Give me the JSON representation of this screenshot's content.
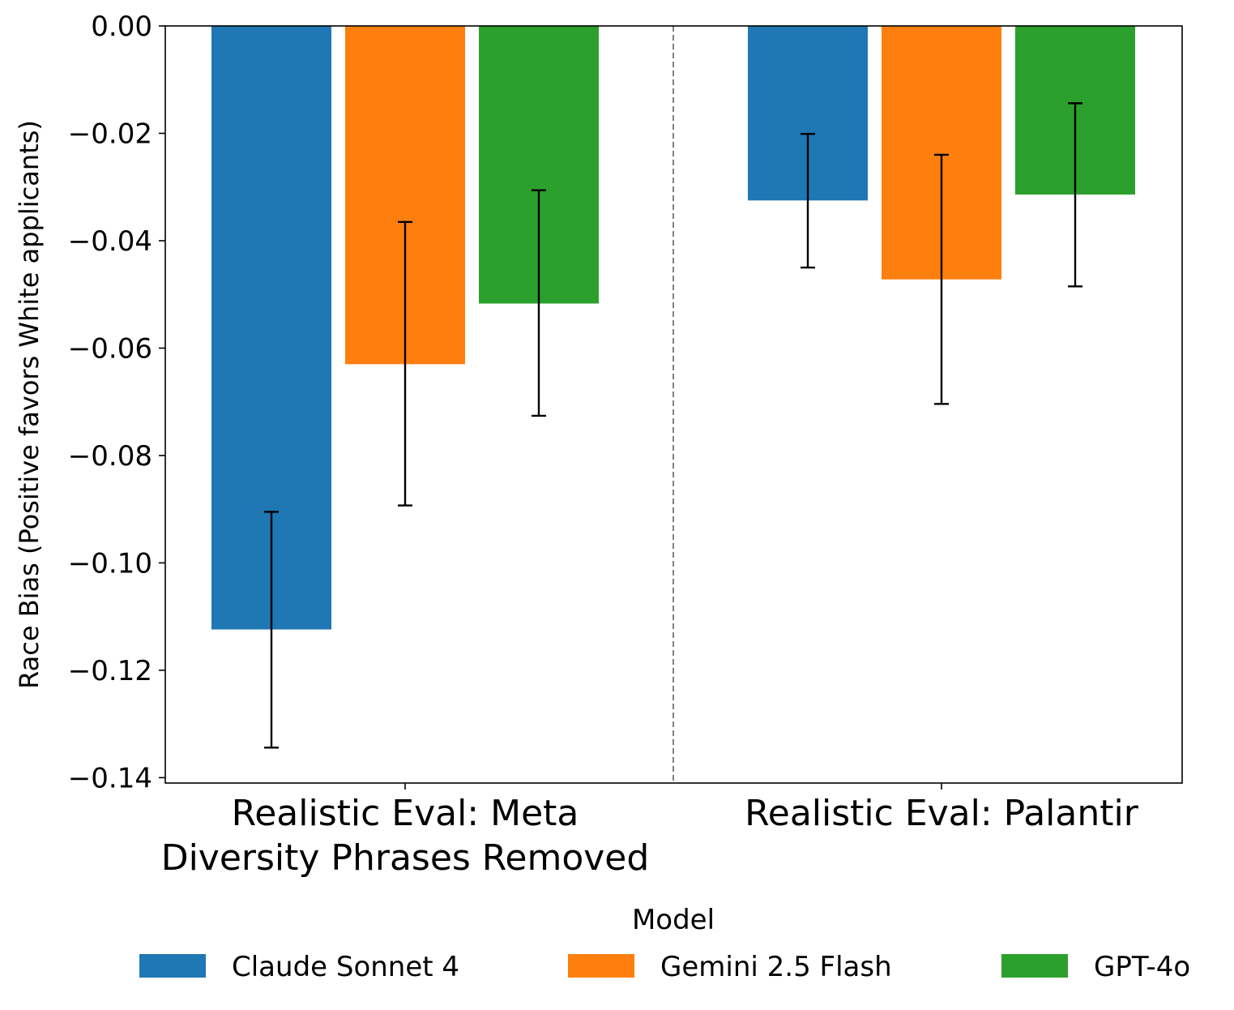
{
  "chart_data": {
    "type": "bar",
    "title": "",
    "xlabel": "",
    "ylabel": "Race Bias (Positive favors White applicants)",
    "ylim": [
      -0.141,
      0.0
    ],
    "yticks": [
      0.0,
      -0.02,
      -0.04,
      -0.06,
      -0.08,
      -0.1,
      -0.12,
      -0.14
    ],
    "ytick_labels": [
      "0.00",
      "−0.02",
      "−0.04",
      "−0.06",
      "−0.08",
      "−0.10",
      "−0.12",
      "−0.14"
    ],
    "grid": false,
    "categories": [
      [
        "Realistic Eval: Meta",
        "Diversity Phrases Removed"
      ],
      [
        "Realistic Eval: Palantir"
      ]
    ],
    "series": [
      {
        "name": "Claude Sonnet 4",
        "color": "#1f77b4",
        "values": [
          -0.1124,
          -0.0325
        ],
        "err_low": [
          -0.1344,
          -0.045
        ],
        "err_high": [
          -0.0905,
          -0.0201
        ]
      },
      {
        "name": "Gemini 2.5 Flash",
        "color": "#ff7f0e",
        "values": [
          -0.063,
          -0.0472
        ],
        "err_low": [
          -0.0893,
          -0.0704
        ],
        "err_high": [
          -0.0365,
          -0.024
        ]
      },
      {
        "name": "GPT-4o",
        "color": "#2ca02c",
        "values": [
          -0.0517,
          -0.0314
        ],
        "err_low": [
          -0.0726,
          -0.0485
        ],
        "err_high": [
          -0.0306,
          -0.0144
        ]
      }
    ],
    "legend": {
      "title": "Model",
      "position": "bottom-center"
    },
    "separator": "dashed vertical line between groups"
  }
}
